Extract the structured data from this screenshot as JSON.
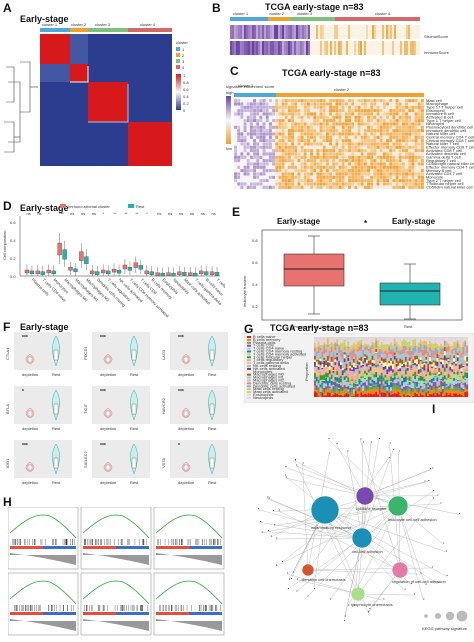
{
  "figure": {
    "panel_labels": [
      "A",
      "B",
      "C",
      "D",
      "E",
      "F",
      "G",
      "H",
      "I"
    ],
    "colors": {
      "immuno": "#e8726f",
      "rest": "#22b3b0",
      "heat_red": "#d7191c",
      "heat_blue": "#2c3d8f",
      "orange": "#f0a030",
      "purple": "#6b3fa0"
    }
  },
  "panel_a": {
    "title": "Early-stage",
    "cluster_labels": [
      "cluster 1",
      "cluster 2",
      "cluster 3",
      "cluster 4"
    ],
    "legend_title": "cluster",
    "legend_items": [
      "1",
      "2",
      "3",
      "4"
    ],
    "scale_ticks": [
      "1",
      "0.8",
      "0.6",
      "0.4",
      "0.2",
      "0"
    ]
  },
  "panel_b": {
    "title": "TCGA early-stage",
    "n_label": "n=83",
    "cluster_labels": [
      "cluster 1",
      "cluster 2",
      "cluster 3",
      "cluster 4"
    ],
    "row_labels": [
      "StromalScore",
      "ImmuneScore"
    ]
  },
  "panel_c": {
    "title": "TCGA early-stage",
    "n_label": "n=83",
    "cluster_labels": [
      "cluster 1",
      "cluster 2"
    ],
    "legend_top": "signature enrichment score",
    "legend_high": "high",
    "legend_low": "low",
    "row_labels": [
      "Mast cell",
      "Macrophage",
      "Type 17 T helper cell",
      "Eosinophil",
      "Immature B cell",
      "Activated B cell",
      "Type 1 T helper cell",
      "Neutrophil",
      "Plasmacytoid dendritic cell",
      "Immature dendritic cell",
      "Natural killer cell",
      "Central memory CD4 T cell",
      "Central memory CD8 T cell",
      "Natural killer T cell",
      "Effector memory CD8 T cell",
      "Activated CD8 T cell",
      "Activated dendritic cell",
      "Gamma delta T cell",
      "Regulatory T cell",
      "CD56bright natural killer cell",
      "Effector memory CD4 T cell",
      "Memory B cell",
      "Activated CD4 T cell",
      "Monocyte",
      "Type 2 T helper cell",
      "T follicular helper cell",
      "CD56dim natural killer cell"
    ]
  },
  "panel_d": {
    "title": "Early-stage",
    "ylabel": "Cell composition",
    "legend": [
      "Immuno-stromal cluster",
      "Rest"
    ],
    "significance": [
      "ns",
      "ns",
      "*",
      "***",
      "ns",
      "ns",
      "ns",
      "*",
      "**",
      "**",
      "**",
      "*",
      "ns",
      "ns",
      "ns",
      "ns",
      "ns",
      "ns"
    ],
    "categories": [
      "Plasma cells",
      "T cells CD4 naive",
      "Monocytes",
      "Macrophages M0",
      "Macrophages M1",
      "Macrophages M2",
      "Dendritic cells resting",
      "T cells regulatory",
      "NK cells activated",
      "T cells CD4 memory activated",
      "T cells CD8",
      "B cells memory",
      "Eosinophils",
      "Neutrophils",
      "Mast cells activated",
      "T cells gamma delta",
      "B cells naive",
      "T cells follicular helper"
    ],
    "yticks": [
      "0.0",
      "0.2",
      "0.4",
      "0.6"
    ]
  },
  "panel_e": {
    "left_title": "Early-stage",
    "right_title": "Early-stage",
    "star": "*",
    "ylabel": "leukocyte fraction",
    "categories": [
      "Immuno-stromal cluster",
      "Rest"
    ],
    "yticks": [
      "0.8",
      "0.6",
      "0.4",
      "0.2"
    ]
  },
  "panel_f": {
    "title": "Early-stage",
    "xcats": [
      "depletion",
      "Rest"
    ],
    "genes": [
      {
        "name": "CTLA4",
        "sig": "***"
      },
      {
        "name": "PDCD1",
        "sig": "***"
      },
      {
        "name": "LAG3",
        "sig": "***"
      },
      {
        "name": "BTLA",
        "sig": "*"
      },
      {
        "name": "TIGIT",
        "sig": "***"
      },
      {
        "name": "HAVCR2",
        "sig": "***"
      },
      {
        "name": "IDO1",
        "sig": "***"
      },
      {
        "name": "SIGLEC7",
        "sig": "***"
      },
      {
        "name": "VSTA",
        "sig": "*"
      }
    ]
  },
  "panel_g": {
    "title": "TCGA early-stage",
    "n_label": "n=83",
    "ylabel": "Proportion",
    "legend_items": [
      "B cells naive",
      "B cells memory",
      "Plasma cells",
      "T cells CD8",
      "T cells CD4 naive",
      "T cells CD4 memory resting",
      "T cells CD4 memory activated",
      "T cells follicular helper",
      "T cells regulatory",
      "T cells gamma delta",
      "NK cells resting",
      "NK cells activated",
      "Monocytes",
      "Macrophages M0",
      "Macrophages M1",
      "Macrophages M2",
      "Dendritic cells resting",
      "Dendritic cells activated",
      "Mast cells resting",
      "Mast cells activated",
      "Eosinophils",
      "Neutrophils"
    ],
    "legend_colors": [
      "#e41a1c",
      "#ff7f00",
      "#4daf4a",
      "#984ea3",
      "#a6cee3",
      "#1f78b4",
      "#b2df8a",
      "#33a02c",
      "#fb9a99",
      "#fdbf6f",
      "#cab2d6",
      "#6a3d9a",
      "#ffff99",
      "#b15928",
      "#8dd3c7",
      "#bebada",
      "#fb8072",
      "#80b1d3",
      "#fdb462",
      "#b3de69",
      "#fccde5",
      "#d9d9d9"
    ]
  },
  "panel_h": {
    "plots": 6
  },
  "panel_i": {
    "nodes": [
      {
        "label": "inflammatory response",
        "color": "#1b8fb5"
      },
      {
        "label": "cytokine receptor activity",
        "color": "#7a4ab0"
      },
      {
        "label": "leukocyte cell-cell adhesion",
        "color": "#3bb56b"
      },
      {
        "label": "cell-cell adhesion",
        "color": "#1b8fb5"
      },
      {
        "label": "dendritic cell chemotaxis",
        "color": "#d2572e"
      },
      {
        "label": "regulation of cell-cell adhesion",
        "color": "#e47aa8"
      },
      {
        "label": "lymphocyte chemotaxis",
        "color": "#a8df8c"
      }
    ],
    "legend_title": "KEGG pathway signature"
  }
}
